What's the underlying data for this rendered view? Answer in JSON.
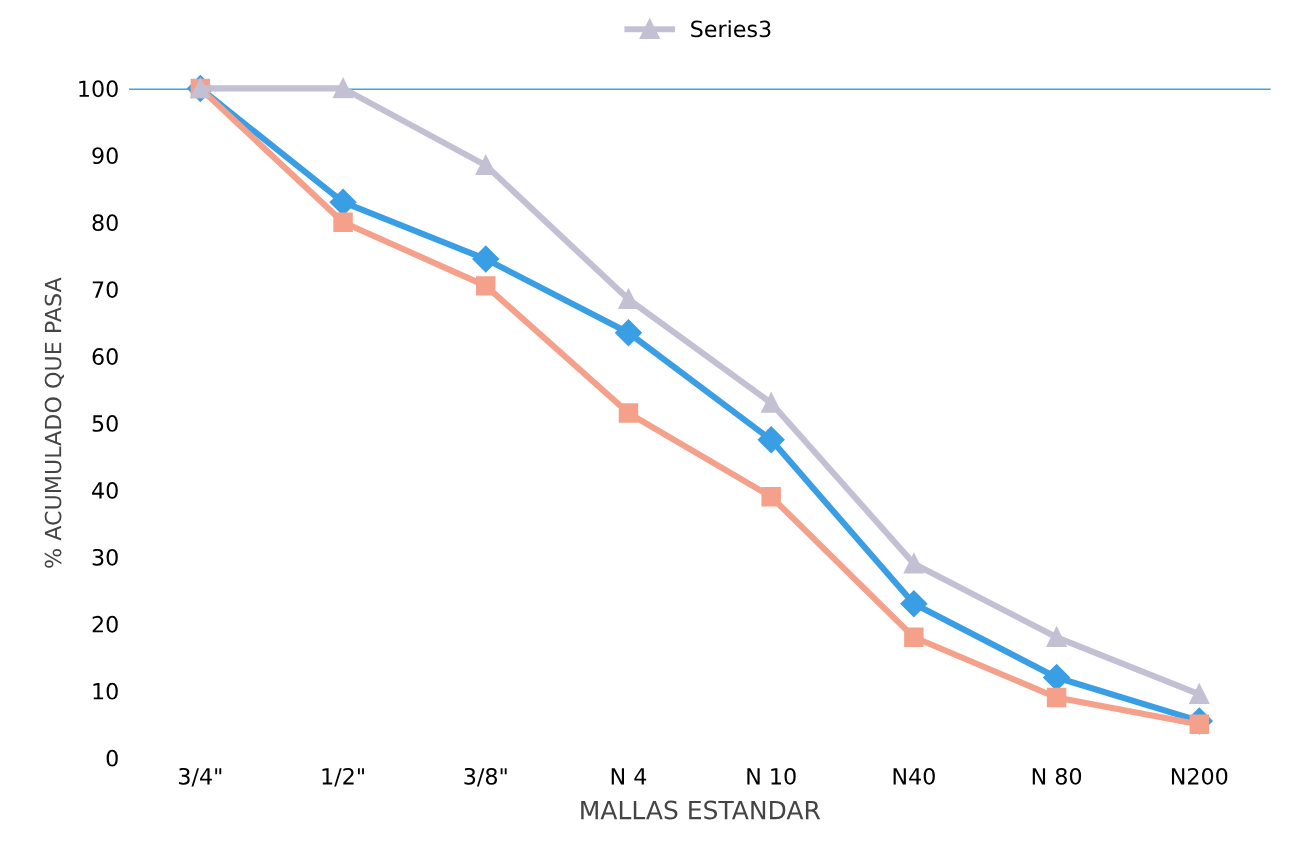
{
  "chart_data": {
    "type": "line",
    "xlabel": "MALLAS ESTANDAR",
    "ylabel": "% ACUMULADO QUE PASA",
    "categories": [
      "3/4\"",
      "1/2\"",
      "3/8\"",
      "N 4",
      "N 10",
      "N40",
      "N 80",
      "N200"
    ],
    "series": [
      {
        "color": "#3a9ee4",
        "marker": "diamond",
        "values": [
          100,
          83,
          74.5,
          63.5,
          47.5,
          23,
          12,
          5.5
        ]
      },
      {
        "color": "#f4a08a",
        "marker": "square",
        "values": [
          100,
          80,
          70.5,
          51.5,
          39,
          18,
          9,
          5
        ]
      },
      {
        "name": "Series3",
        "color": "#c4c0d4",
        "marker": "triangle",
        "values": [
          100,
          100,
          88.5,
          68.5,
          53,
          29,
          18,
          9.5
        ]
      }
    ],
    "ylim": [
      0,
      100
    ],
    "yticks": [
      0,
      10,
      20,
      30,
      40,
      50,
      60,
      70,
      80,
      90,
      100
    ],
    "ref_lines": [
      {
        "axis": "y",
        "value": 100,
        "color": "#3aa8d8"
      }
    ],
    "grid": false,
    "legend": "top",
    "line_style": "solid"
  }
}
